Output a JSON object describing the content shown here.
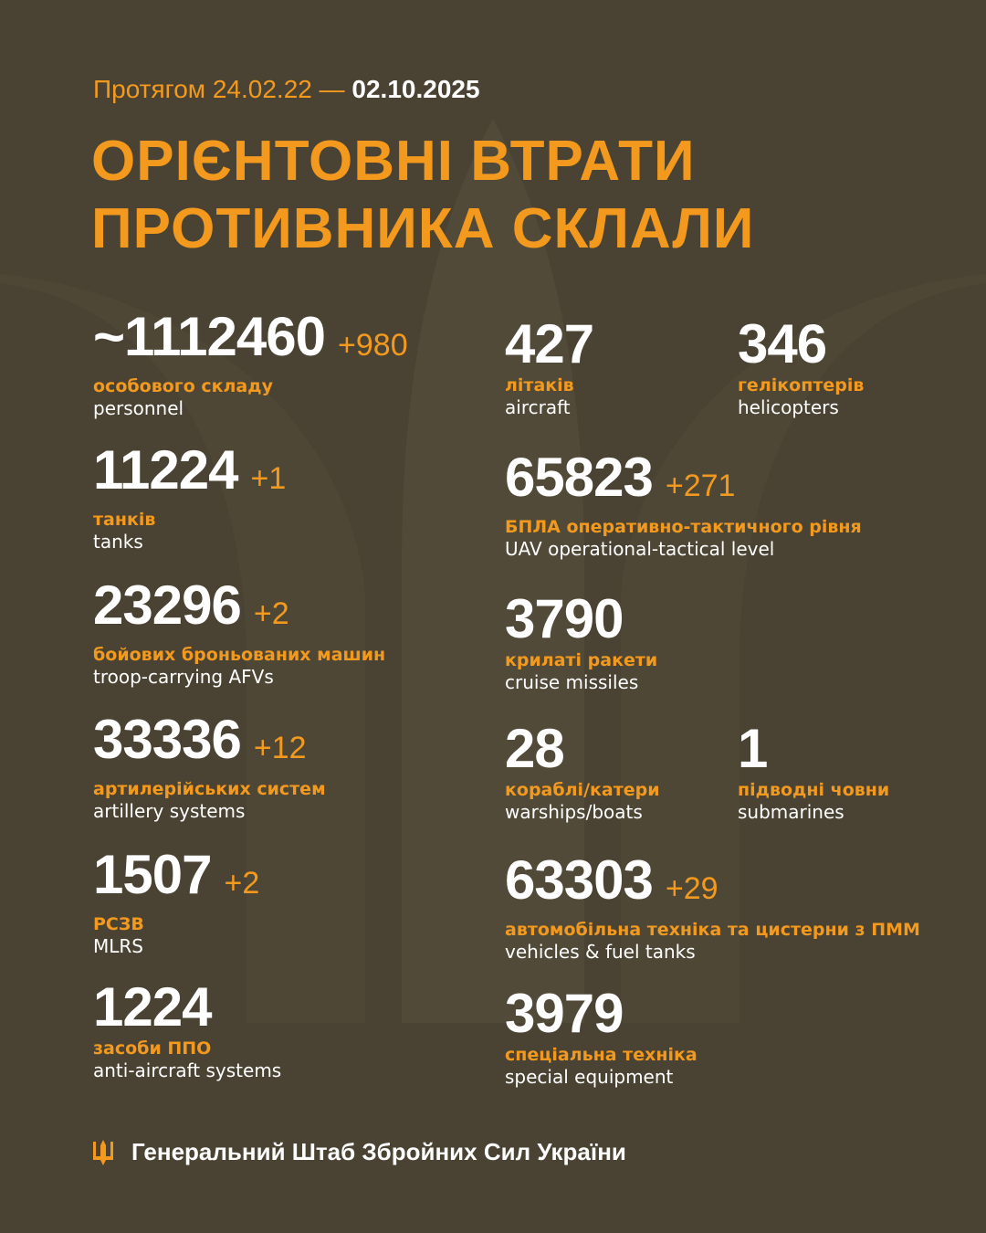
{
  "header": {
    "period_prefix": "Протягом 24.02.22 —",
    "period_end": "02.10.2025",
    "title_line1": "ОРІЄНТОВНІ ВТРАТИ",
    "title_line2": "ПРОТИВНИКА СКЛАЛИ"
  },
  "colors": {
    "background": "#4a4333",
    "accent": "#f39a1e",
    "text": "#ffffff"
  },
  "stats": [
    {
      "value": "~1112460",
      "delta": "+980",
      "label_ua": "особового складу",
      "label_en": "personnel"
    },
    {
      "value": "11224",
      "delta": "+1",
      "label_ua": "танків",
      "label_en": "tanks"
    },
    {
      "value": "23296",
      "delta": "+2",
      "label_ua": "бойових броньованих машин",
      "label_en": "troop-carrying AFVs"
    },
    {
      "value": "33336",
      "delta": "+12",
      "label_ua": "артилерійських систем",
      "label_en": "artillery systems"
    },
    {
      "value": "1507",
      "delta": "+2",
      "label_ua": "РСЗВ",
      "label_en": "MLRS"
    },
    {
      "value": "1224",
      "delta": "",
      "label_ua": "засоби ППО",
      "label_en": "anti-aircraft systems"
    },
    {
      "value": "427",
      "delta": "",
      "label_ua": "літаків",
      "label_en": "aircraft"
    },
    {
      "value": "346",
      "delta": "",
      "label_ua": "гелікоптерів",
      "label_en": "helicopters"
    },
    {
      "value": "65823",
      "delta": "+271",
      "label_ua": "БПЛА оперативно-тактичного рівня",
      "label_en": "UAV operational-tactical level"
    },
    {
      "value": "3790",
      "delta": "",
      "label_ua": "крилаті ракети",
      "label_en": "cruise missiles"
    },
    {
      "value": "28",
      "delta": "",
      "label_ua": "кораблі/катери",
      "label_en": "warships/boats"
    },
    {
      "value": "1",
      "delta": "",
      "label_ua": "підводні човни",
      "label_en": "submarines"
    },
    {
      "value": "63303",
      "delta": "+29",
      "label_ua": "автомобільна техніка та цистерни з ПММ",
      "label_en": "vehicles & fuel tanks"
    },
    {
      "value": "3979",
      "delta": "",
      "label_ua": "спеціальна техніка",
      "label_en": "special equipment"
    }
  ],
  "footer": {
    "icon": "trident-icon",
    "text": "Генеральний Штаб Збройних Сил України"
  }
}
